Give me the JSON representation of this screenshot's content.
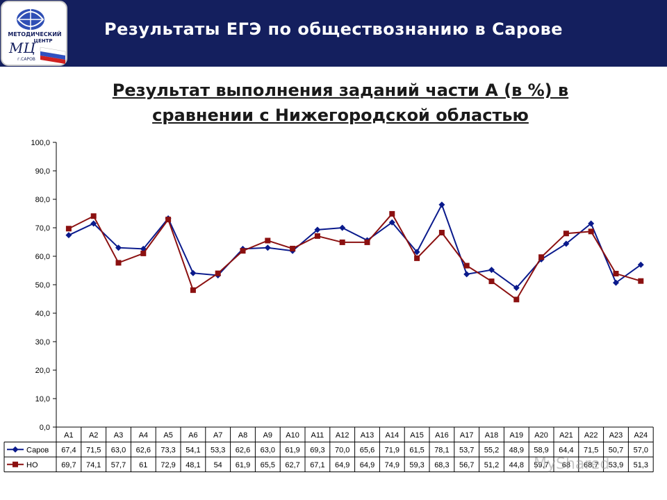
{
  "header": {
    "title": "Результаты  ЕГЭ по обществознанию в Сарове",
    "logo_text_1": "МЕТОДИЧЕСКИЙ",
    "logo_text_2": "ЦЕНТР",
    "logo_text_3": "МЦ",
    "logo_text_4": "г.САРОВ"
  },
  "chart_title": {
    "line1": "Результат выполнения заданий части А (в %) в",
    "line2": "сравнении с Нижегородской областью"
  },
  "watermark": "MyShared",
  "colors": {
    "header_bg": "#141f5e",
    "sarov": "#0a1a8c",
    "no": "#8b1010"
  },
  "chart_data": {
    "type": "line",
    "title": "",
    "xlabel": "",
    "ylabel": "",
    "ylim": [
      0,
      100
    ],
    "yticks": [
      "0,0",
      "10,0",
      "20,0",
      "30,0",
      "40,0",
      "50,0",
      "60,0",
      "70,0",
      "80,0",
      "90,0",
      "100,0"
    ],
    "grid": false,
    "legend": "data-table-left",
    "categories": [
      "A1",
      "A2",
      "A3",
      "A4",
      "A5",
      "A6",
      "A7",
      "A8",
      "A9",
      "A10",
      "A11",
      "A12",
      "A13",
      "A14",
      "A15",
      "A16",
      "A17",
      "A18",
      "A19",
      "A20",
      "A21",
      "A22",
      "A23",
      "A24"
    ],
    "series": [
      {
        "name": "Саров",
        "marker": "diamond",
        "color": "#0a1a8c",
        "values": [
          67.4,
          71.5,
          63.0,
          62.6,
          73.3,
          54.1,
          53.3,
          62.6,
          63.0,
          61.9,
          69.3,
          70.0,
          65.6,
          71.9,
          61.5,
          78.1,
          53.7,
          55.2,
          48.9,
          58.9,
          64.4,
          71.5,
          50.7,
          57.0
        ],
        "labels": [
          "67,4",
          "71,5",
          "63,0",
          "62,6",
          "73,3",
          "54,1",
          "53,3",
          "62,6",
          "63,0",
          "61,9",
          "69,3",
          "70,0",
          "65,6",
          "71,9",
          "61,5",
          "78,1",
          "53,7",
          "55,2",
          "48,9",
          "58,9",
          "64,4",
          "71,5",
          "50,7",
          "57,0"
        ]
      },
      {
        "name": "НО",
        "marker": "square",
        "color": "#8b1010",
        "values": [
          69.7,
          74.1,
          57.7,
          61,
          72.9,
          48.1,
          54,
          61.9,
          65.5,
          62.7,
          67.1,
          64.9,
          64.9,
          74.9,
          59.3,
          68.3,
          56.7,
          51.2,
          44.8,
          59.7,
          68,
          68.7,
          53.9,
          51.3
        ],
        "labels": [
          "69,7",
          "74,1",
          "57,7",
          "61",
          "72,9",
          "48,1",
          "54",
          "61,9",
          "65,5",
          "62,7",
          "67,1",
          "64,9",
          "64,9",
          "74,9",
          "59,3",
          "68,3",
          "56,7",
          "51,2",
          "44,8",
          "59,7",
          "68",
          "68,7",
          "53,9",
          "51,3"
        ]
      }
    ]
  }
}
